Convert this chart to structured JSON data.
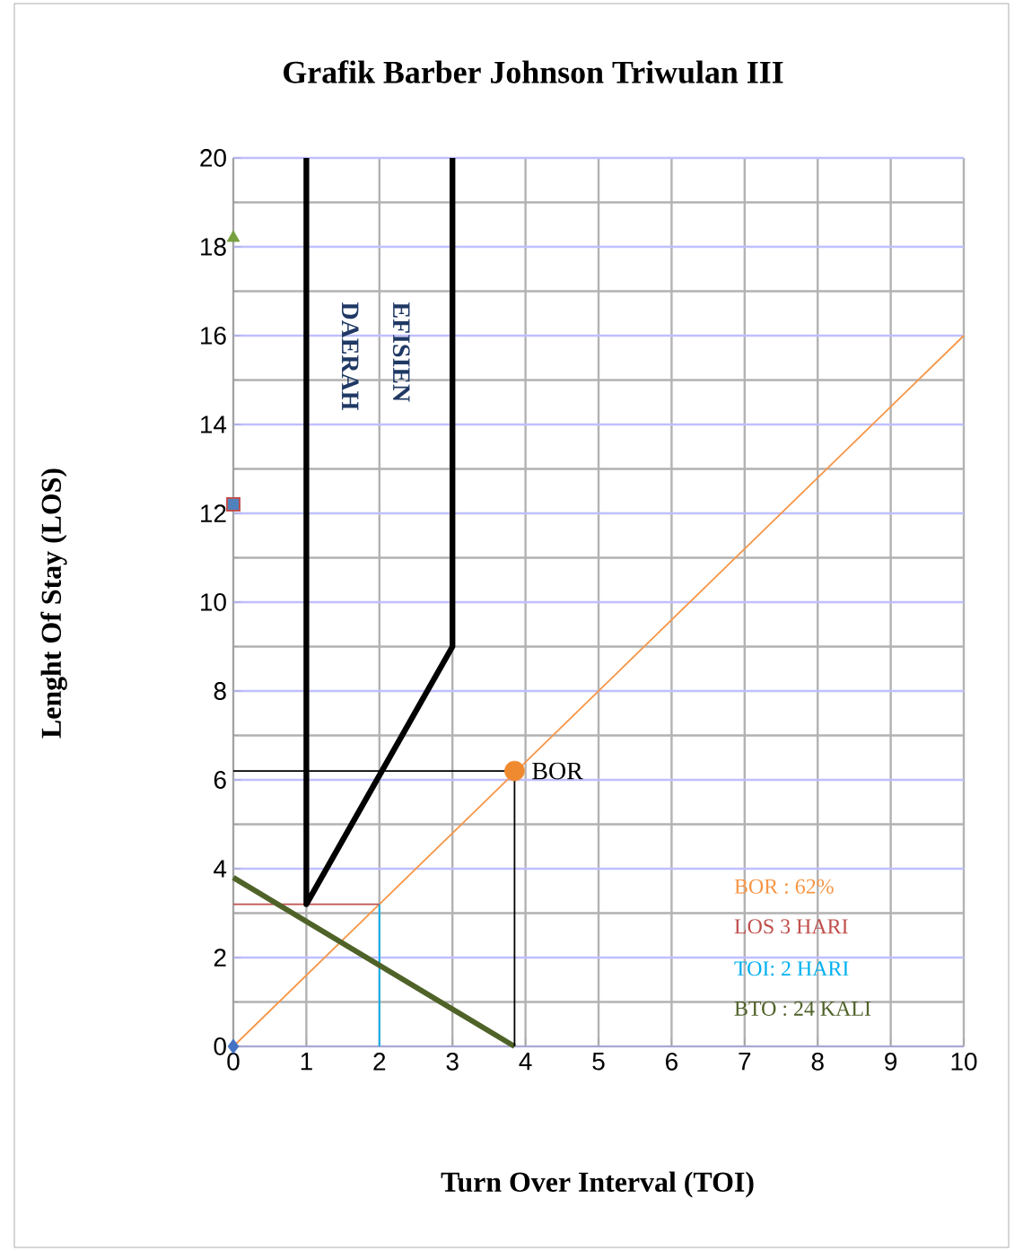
{
  "chart_data": {
    "type": "line",
    "title": "Grafik Barber Johnson Triwulan III",
    "xlabel": "Turn Over Interval (TOI)",
    "ylabel": "Lenght Of  Stay (LOS)",
    "xlim": [
      0,
      10
    ],
    "ylim": [
      0,
      20
    ],
    "xticks": [
      0,
      1,
      2,
      3,
      4,
      5,
      6,
      7,
      8,
      9,
      10
    ],
    "yticks": [
      0,
      2,
      4,
      6,
      8,
      10,
      12,
      14,
      16,
      18,
      20
    ],
    "grid": true,
    "series": [
      {
        "color": "#f79646",
        "x": [
          0,
          10
        ],
        "values": [
          0,
          16
        ]
      },
      {
        "color": "#c0504d",
        "x": [
          0,
          2
        ],
        "values": [
          3.2,
          3.2
        ]
      },
      {
        "color": "#00b0f0",
        "x": [
          2,
          2
        ],
        "values": [
          3.2,
          0
        ]
      },
      {
        "color": "#4f6228",
        "x": [
          0,
          3.85
        ],
        "values": [
          3.8,
          0
        ]
      },
      {
        "color": "#000000",
        "x": [
          1,
          1,
          3,
          3
        ],
        "values": [
          20,
          3.2,
          9,
          20
        ]
      },
      {
        "color": "#000000",
        "x": [
          0,
          3.85,
          3.85
        ],
        "values": [
          6.2,
          6.2,
          0
        ]
      },
      {
        "type": "scatter",
        "color": "#f08a30",
        "x": [
          3.85
        ],
        "values": [
          6.2
        ],
        "marker": "circle"
      },
      {
        "type": "scatter",
        "color": "#4472c4",
        "x": [
          0
        ],
        "values": [
          0
        ],
        "marker": "diamond"
      },
      {
        "type": "scatter",
        "color": "#4f81bd",
        "x": [
          0
        ],
        "values": [
          12.2
        ],
        "marker": "square"
      },
      {
        "type": "scatter",
        "color": "#77a03f",
        "x": [
          0
        ],
        "values": [
          18.2
        ],
        "marker": "triangle"
      }
    ],
    "annotations": [
      "DAERAH",
      "EFISIEN",
      {
        "text": "BOR",
        "x": 3.85,
        "y": 6.2
      },
      "BOR : 62%",
      "LOS 3 HARI",
      "TOI: 2 HARI",
      "BTO : 24 KALI"
    ]
  }
}
